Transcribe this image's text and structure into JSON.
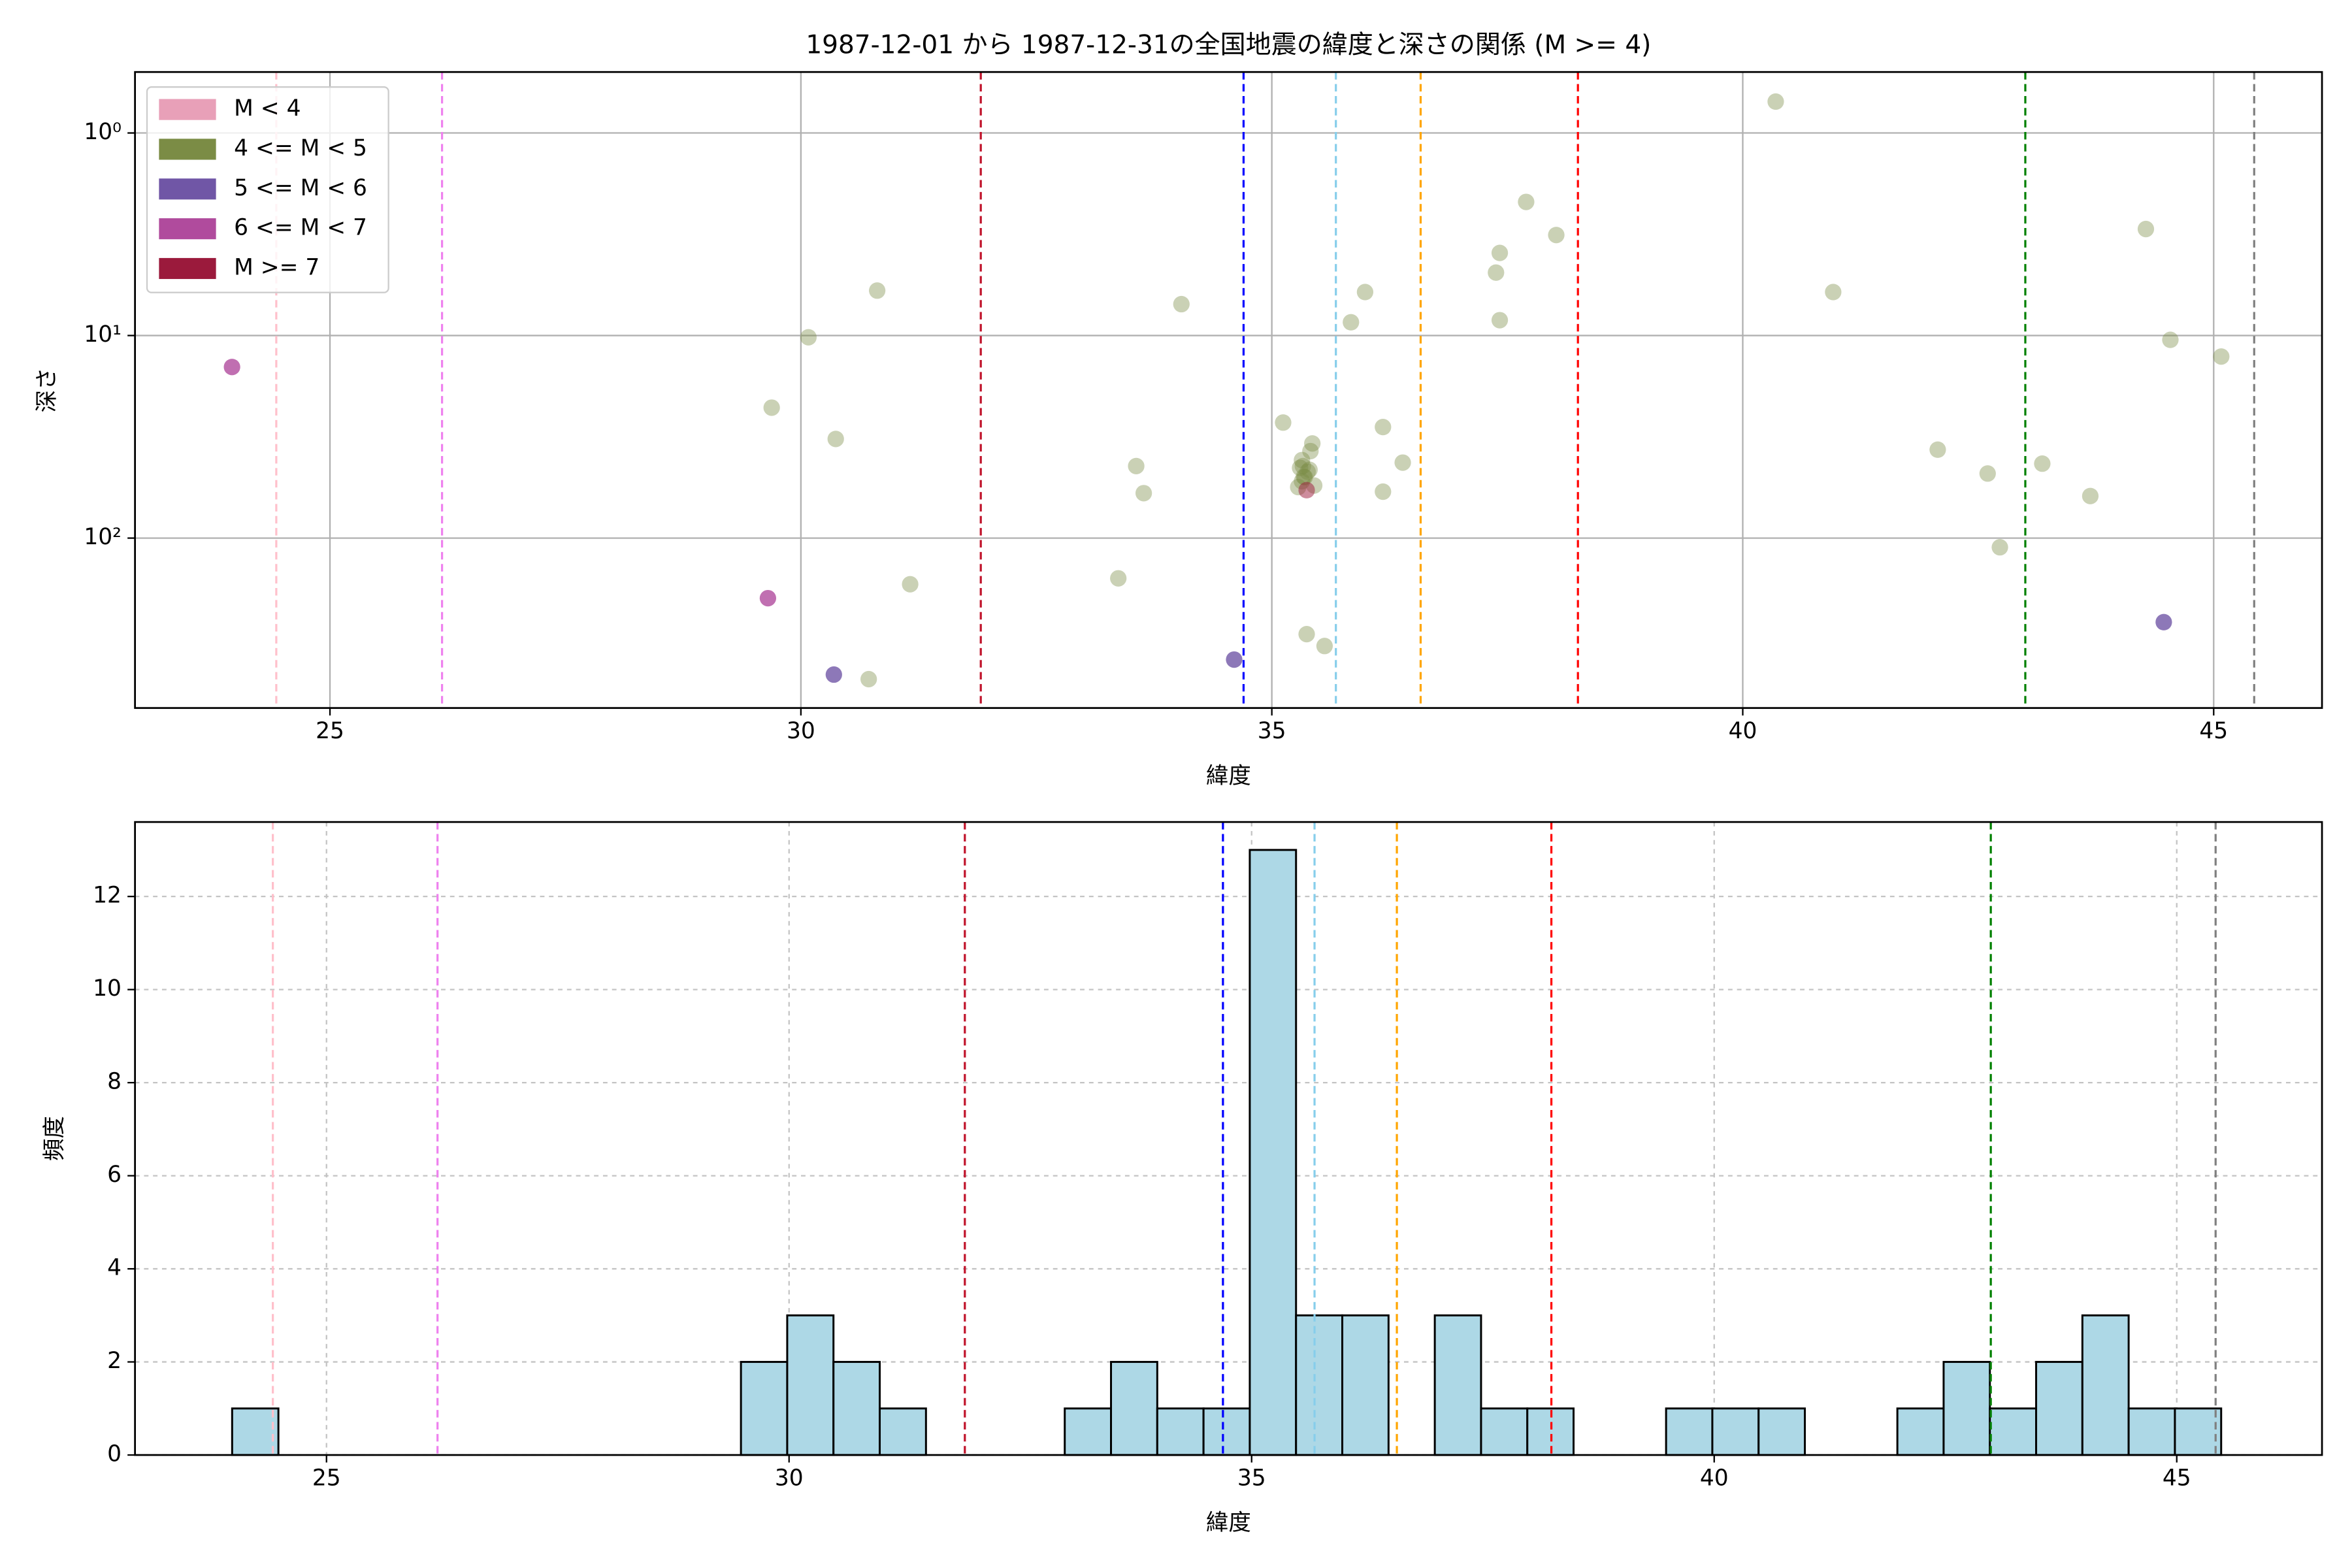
{
  "chart_data": [
    {
      "type": "scatter",
      "title": "1987-12-01 から 1987-12-31の全国地震の緯度と深さの関係 (M >= 4)",
      "x_label": "緯度",
      "y_label": "深さ",
      "xlim": [
        22.93,
        46.15
      ],
      "xticks": [
        25,
        30,
        35,
        40,
        45
      ],
      "yscale": "log",
      "ylim": [
        690,
        0.5
      ],
      "yticks": [
        {
          "value": 1,
          "label": "10⁰"
        },
        {
          "value": 10,
          "label": "10¹"
        },
        {
          "value": 100,
          "label": "10²"
        }
      ],
      "grid": true,
      "grid_style": "solid",
      "legend": "upper left",
      "vlines": [
        {
          "x": 24.43,
          "color": "pink"
        },
        {
          "x": 26.19,
          "color": "violet"
        },
        {
          "x": 31.91,
          "color": "#c0142c"
        },
        {
          "x": 34.7,
          "color": "blue"
        },
        {
          "x": 35.68,
          "color": "skyblue"
        },
        {
          "x": 36.58,
          "color": "orange"
        },
        {
          "x": 38.25,
          "color": "red"
        },
        {
          "x": 43.0,
          "color": "green"
        },
        {
          "x": 45.43,
          "color": "gray"
        }
      ],
      "series": [
        {
          "name": "M < 4",
          "color": "#e8a0b8",
          "alpha": 1,
          "x": [],
          "values": []
        },
        {
          "name": "4 <= M < 5",
          "color": "#7b8c45",
          "alpha": 0.4,
          "x": [
            40.35,
            37.7,
            38.02,
            37.42,
            37.38,
            30.81,
            35.99,
            40.96,
            34.04,
            44.28,
            37.42,
            35.84,
            30.08,
            44.54,
            45.08,
            29.69,
            35.12,
            36.18,
            30.37,
            35.43,
            35.41,
            42.07,
            35.32,
            35.33,
            33.56,
            36.39,
            43.18,
            42.6,
            35.34,
            35.32,
            35.45,
            33.64,
            36.18,
            43.69,
            42.73,
            33.37,
            31.16,
            35.37,
            35.56,
            30.72,
            35.3,
            35.38,
            35.35,
            35.28,
            35.4
          ],
          "values": [
            0.7,
            2.19,
            3.19,
            3.91,
            4.89,
            6.0,
            6.1,
            6.1,
            7.0,
            2.98,
            8.4,
            8.6,
            10.2,
            10.5,
            12.7,
            22.7,
            26.9,
            28.3,
            32.4,
            34.1,
            37.2,
            36.6,
            41.2,
            44.1,
            44.1,
            42.4,
            42.9,
            48,
            49.8,
            52.4,
            55,
            60,
            59,
            62,
            111,
            158,
            169,
            298,
            341,
            497,
            45,
            47,
            50,
            56,
            46
          ]
        },
        {
          "name": "5 <= M < 6",
          "color": "#7056a6",
          "alpha": 0.8,
          "x": [
            30.35,
            34.6,
            44.47
          ],
          "values": [
            472,
            398,
            260
          ]
        },
        {
          "name": "6 <= M < 7",
          "color": "#b04b9d",
          "alpha": 0.8,
          "x": [
            23.96,
            29.65
          ],
          "values": [
            14.3,
            198
          ]
        },
        {
          "name": "M >= 7",
          "color": "#9b1a3c",
          "alpha": 0.5,
          "x": [
            35.37
          ],
          "values": [
            58
          ]
        }
      ]
    },
    {
      "type": "histogram",
      "x_label": "緯度",
      "y_label": "頻度",
      "xlim": [
        22.93,
        46.57
      ],
      "xticks": [
        25,
        30,
        35,
        40,
        45
      ],
      "ylim": [
        0,
        13.6
      ],
      "yticks": [
        0,
        2,
        4,
        6,
        8,
        10,
        12
      ],
      "grid": true,
      "grid_style": "dashed",
      "color": "lightblue",
      "edgecolor": "black",
      "vlines": [
        {
          "x": 24.42,
          "color": "pink"
        },
        {
          "x": 26.2,
          "color": "violet"
        },
        {
          "x": 31.9,
          "color": "#c0142c"
        },
        {
          "x": 34.69,
          "color": "blue"
        },
        {
          "x": 35.68,
          "color": "skyblue"
        },
        {
          "x": 36.57,
          "color": "orange"
        },
        {
          "x": 38.24,
          "color": "red"
        },
        {
          "x": 42.99,
          "color": "green"
        },
        {
          "x": 45.42,
          "color": "gray"
        }
      ],
      "bins": [
        23.98,
        24.48,
        24.98,
        25.48,
        25.98,
        26.48,
        26.98,
        27.48,
        27.98,
        28.48,
        28.98,
        29.48,
        29.98,
        30.48,
        30.98,
        31.48,
        31.98,
        32.48,
        32.98,
        33.48,
        33.98,
        34.48,
        34.98,
        35.48,
        35.98,
        36.48,
        36.98,
        37.48,
        37.98,
        38.48,
        38.98,
        39.48,
        39.98,
        40.48,
        40.98,
        41.48,
        41.98,
        42.48,
        42.98,
        43.48,
        43.98,
        44.48,
        44.98,
        45.48
      ],
      "values": [
        1,
        0,
        0,
        0,
        0,
        0,
        0,
        0,
        0,
        0,
        0,
        2,
        3,
        2,
        1,
        0,
        0,
        0,
        1,
        2,
        1,
        1,
        13,
        3,
        3,
        0,
        3,
        1,
        1,
        0,
        0,
        1,
        1,
        1,
        0,
        0,
        1,
        2,
        1,
        2,
        3,
        1,
        1
      ]
    }
  ]
}
